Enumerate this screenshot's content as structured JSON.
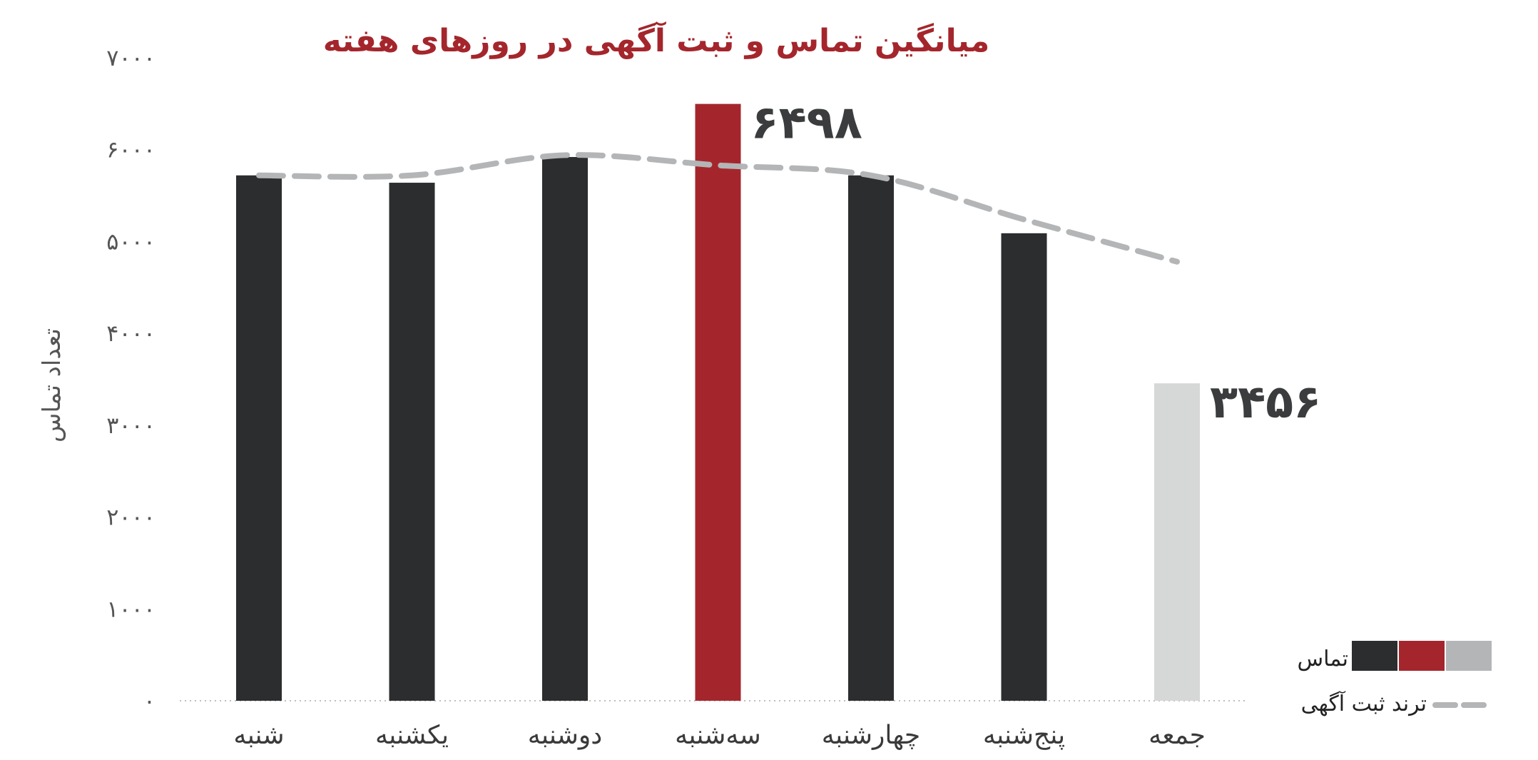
{
  "chart_data": {
    "type": "bar",
    "title": "میانگین تماس و ثبت آگهی در روزهای هفته",
    "ylabel": "تعداد تماس",
    "xlabel": "",
    "ylim": [
      0,
      7000
    ],
    "y_ticks": [
      0,
      1000,
      2000,
      3000,
      4000,
      5000,
      6000,
      7000
    ],
    "y_tick_labels": [
      "۰",
      "۱۰۰۰",
      "۲۰۰۰",
      "۳۰۰۰",
      "۴۰۰۰",
      "۵۰۰۰",
      "۶۰۰۰",
      "۷۰۰۰"
    ],
    "categories": [
      "شنبه",
      "یکشنبه",
      "دوشنبه",
      "سه‌شنبه",
      "چهارشنبه",
      "پنج‌شنبه",
      "جمعه"
    ],
    "series": [
      {
        "name": "تماس",
        "kind": "bar",
        "values": [
          5720,
          5640,
          5920,
          6498,
          5720,
          5090,
          3456
        ],
        "colors": [
          "#2b2d2e",
          "#2b2d2e",
          "#2b2d2e",
          "#a4262c",
          "#2b2d2e",
          "#2b2d2e",
          "#d6d7d7"
        ]
      },
      {
        "name": "ترند ثبت آگهی",
        "kind": "line",
        "style": "dashed",
        "color": "#b3b5b7",
        "values": [
          5720,
          5720,
          5940,
          5830,
          5720,
          5240,
          4780
        ]
      }
    ],
    "data_labels": [
      {
        "category": "سه‌شنبه",
        "text": "۶۴۹۸"
      },
      {
        "category": "جمعه",
        "text": "۳۴۵۶"
      }
    ],
    "legend": {
      "placement": "bottom-right",
      "items": [
        {
          "label": "تماس",
          "swatches": [
            "#2b2d2e",
            "#a4262c",
            "#b3b5b7"
          ]
        },
        {
          "label": "ترند ثبت آگهی",
          "marker": "dashed-line",
          "color": "#b3b5b7"
        }
      ]
    },
    "grid": false,
    "colors": {
      "title": "#a4262c",
      "ticks": "#555555",
      "labels": "#3a3a3a",
      "baseline": "#bfbfbf"
    }
  }
}
